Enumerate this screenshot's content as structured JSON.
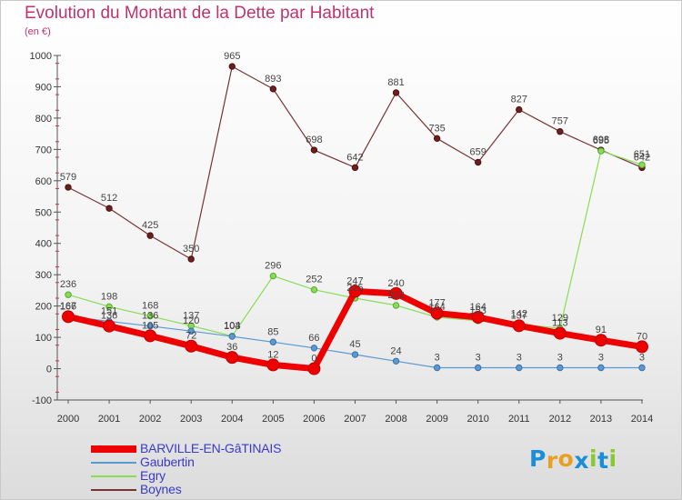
{
  "chart_data": {
    "type": "line",
    "title": "Evolution du Montant de la Dette par Habitant",
    "subtitle": "(en €)",
    "x": [
      "2000",
      "2001",
      "2002",
      "2003",
      "2004",
      "2005",
      "2006",
      "2007",
      "2008",
      "2009",
      "2010",
      "2011",
      "2012",
      "2013",
      "2014"
    ],
    "ylim": [
      -100,
      1000
    ],
    "yticks": [
      -100,
      0,
      100,
      200,
      300,
      400,
      500,
      600,
      700,
      800,
      900,
      1000
    ],
    "grid": false,
    "legend_position": "bottom-left",
    "series": [
      {
        "name": "BARVILLE-EN-GâTINAIS",
        "color": "#ee0000",
        "values": [
          166,
          136,
          105,
          72,
          36,
          12,
          0,
          247,
          240,
          177,
          164,
          137,
          113,
          91,
          70
        ]
      },
      {
        "name": "Gaubertin",
        "color": "#5a9ad0",
        "values": [
          167,
          151,
          136,
          120,
          103,
          85,
          66,
          45,
          24,
          3,
          3,
          3,
          3,
          3,
          3
        ]
      },
      {
        "name": "Egry",
        "color": "#88dd55",
        "values": [
          236,
          198,
          168,
          137,
          104,
          296,
          252,
          225,
          202,
          164,
          153,
          142,
          129,
          695,
          651
        ]
      },
      {
        "name": "Boynes",
        "color": "#773333",
        "values": [
          579,
          512,
          425,
          350,
          965,
          893,
          698,
          642,
          881,
          735,
          659,
          827,
          757,
          698,
          642
        ]
      }
    ]
  },
  "logo": {
    "letters": [
      "P",
      "r",
      "o",
      "x",
      "i",
      "t",
      "i"
    ],
    "colors": [
      "#1a8fd8",
      "#e8a020",
      "#e8a020",
      "#1a8fd8",
      "#88c830",
      "#1a8fd8",
      "#88c830"
    ]
  }
}
